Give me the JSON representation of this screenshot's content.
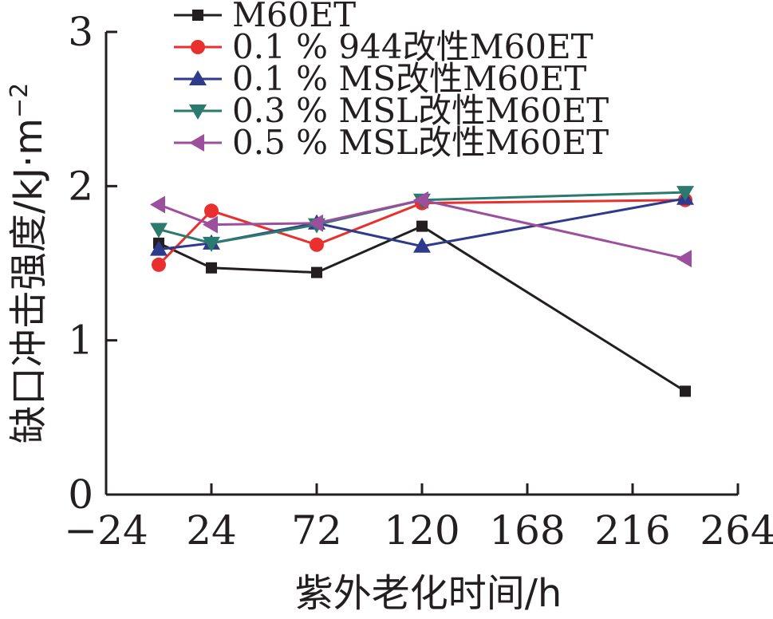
{
  "chart_data": {
    "type": "line",
    "xlabel": "紫外老化时间/h",
    "ylabel_main": "缺口冲击强度/kJ·m",
    "ylabel_sup": "−2",
    "xlim": [
      -24,
      264
    ],
    "ylim": [
      0,
      3
    ],
    "xticks": [
      -24,
      24,
      72,
      120,
      168,
      216,
      264
    ],
    "xtick_labels": [
      "−24",
      "24",
      "72",
      "120",
      "168",
      "216",
      "264"
    ],
    "yticks": [
      0,
      1,
      2,
      3
    ],
    "ytick_labels": [
      "0",
      "1",
      "2",
      "3"
    ],
    "grid": false,
    "legend_position": "top-left",
    "x": [
      0,
      24,
      72,
      120,
      240
    ],
    "series": [
      {
        "name": "M60ET",
        "color": "#231f20",
        "marker": "square",
        "values": [
          1.63,
          1.47,
          1.44,
          1.74,
          0.67
        ]
      },
      {
        "name": "0.1 % 944改性M60ET",
        "color": "#e8312f",
        "marker": "circle",
        "values": [
          1.49,
          1.84,
          1.62,
          1.89,
          1.91
        ]
      },
      {
        "name": "0.1 % MS改性M60ET",
        "color": "#2e3a8c",
        "marker": "triangle-up",
        "values": [
          1.59,
          1.63,
          1.76,
          1.61,
          1.92
        ]
      },
      {
        "name": "0.3 % MSL改性M60ET",
        "color": "#2a7a6e",
        "marker": "triangle-down",
        "values": [
          1.72,
          1.63,
          1.75,
          1.91,
          1.96
        ]
      },
      {
        "name": "0.5 % MSL改性M60ET",
        "color": "#9b4f9c",
        "marker": "triangle-left",
        "values": [
          1.88,
          1.75,
          1.76,
          1.91,
          1.53
        ]
      }
    ]
  }
}
